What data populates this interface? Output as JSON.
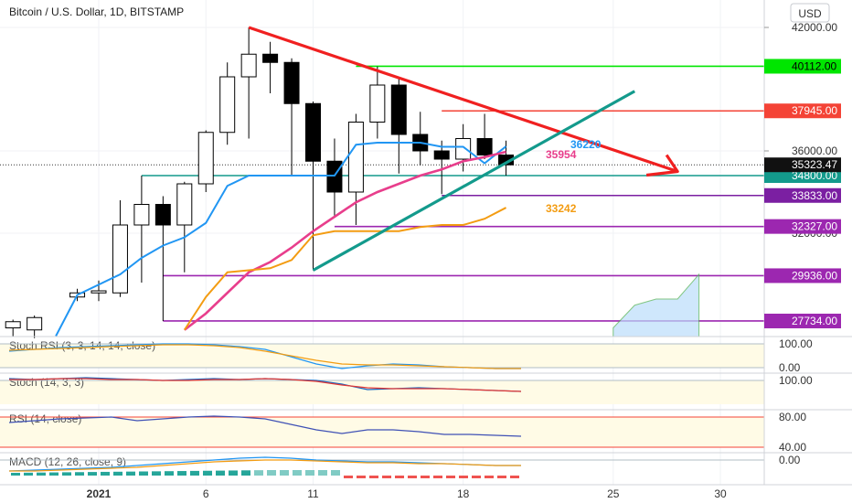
{
  "chart_data": {
    "type": "candlestick",
    "title": "Bitcoin / U.S. Dollar, 1D, BITSTAMP",
    "currency_button": "USD",
    "price_axis": {
      "ticks": [
        {
          "label": "42000.00",
          "value": 42000
        },
        {
          "label": "36000.00",
          "value": 36000
        },
        {
          "label": "32000.00",
          "value": 32000
        }
      ]
    },
    "x_axis_labels": [
      {
        "label": "2021",
        "day": 1
      },
      {
        "label": "6",
        "day": 6
      },
      {
        "label": "11",
        "day": 11
      },
      {
        "label": "18",
        "day": 18
      },
      {
        "label": "25",
        "day": 25
      },
      {
        "label": "30",
        "day": 30
      }
    ],
    "candles": [
      {
        "day": -3,
        "open": 27400,
        "high": 27800,
        "low": 27000,
        "close": 27700
      },
      {
        "day": -2,
        "open": 27300,
        "high": 28000,
        "low": 26900,
        "close": 27900
      },
      {
        "day": 0,
        "open": 28900,
        "high": 29300,
        "low": 28700,
        "close": 29100
      },
      {
        "day": 1,
        "open": 29100,
        "high": 29700,
        "low": 28700,
        "close": 29200
      },
      {
        "day": 2,
        "open": 29100,
        "high": 33600,
        "low": 28900,
        "close": 32400
      },
      {
        "day": 3,
        "open": 32400,
        "high": 34800,
        "low": 29600,
        "close": 33400
      },
      {
        "day": 4,
        "open": 33400,
        "high": 33800,
        "low": 27734,
        "close": 32400
      },
      {
        "day": 5,
        "open": 32400,
        "high": 34500,
        "low": 30100,
        "close": 34400
      },
      {
        "day": 6,
        "open": 34400,
        "high": 37000,
        "low": 34000,
        "close": 36900
      },
      {
        "day": 7,
        "open": 36900,
        "high": 40300,
        "low": 36300,
        "close": 39600
      },
      {
        "day": 8,
        "open": 39600,
        "high": 42000,
        "low": 36600,
        "close": 40700
      },
      {
        "day": 9,
        "open": 40700,
        "high": 41300,
        "low": 38800,
        "close": 40300
      },
      {
        "day": 10,
        "open": 40300,
        "high": 40500,
        "low": 34800,
        "close": 38300
      },
      {
        "day": 11,
        "open": 38300,
        "high": 38400,
        "low": 30200,
        "close": 35500
      },
      {
        "day": 12,
        "open": 35500,
        "high": 36600,
        "low": 32800,
        "close": 34000
      },
      {
        "day": 13,
        "open": 34000,
        "high": 37800,
        "low": 32400,
        "close": 37400
      },
      {
        "day": 14,
        "open": 37400,
        "high": 40100,
        "low": 36600,
        "close": 39200
      },
      {
        "day": 15,
        "open": 39200,
        "high": 39500,
        "low": 34900,
        "close": 36800
      },
      {
        "day": 16,
        "open": 36800,
        "high": 37900,
        "low": 35300,
        "close": 36000
      },
      {
        "day": 17,
        "open": 36000,
        "high": 36500,
        "low": 33900,
        "close": 35600
      },
      {
        "day": 18,
        "open": 35600,
        "high": 37300,
        "low": 35000,
        "close": 36600
      },
      {
        "day": 19,
        "open": 36600,
        "high": 37800,
        "low": 35600,
        "close": 35800
      },
      {
        "day": 20,
        "open": 35800,
        "high": 36500,
        "low": 34800,
        "close": 35323
      }
    ],
    "indicator_lines": [
      {
        "name": "blue-line",
        "color": "#2196f3",
        "label": "36220",
        "points": [
          [
            -1,
            27000
          ],
          [
            0,
            29000
          ],
          [
            2,
            30000
          ],
          [
            3,
            30800
          ],
          [
            4,
            31400
          ],
          [
            5,
            31800
          ],
          [
            6,
            32500
          ],
          [
            7,
            34300
          ],
          [
            8,
            34800
          ],
          [
            9,
            34800
          ],
          [
            10,
            34800
          ],
          [
            11,
            34800
          ],
          [
            12,
            34800
          ],
          [
            13,
            36300
          ],
          [
            14,
            36400
          ],
          [
            15,
            36400
          ],
          [
            16,
            36400
          ],
          [
            17,
            36200
          ],
          [
            18,
            36200
          ],
          [
            19,
            35400
          ],
          [
            20,
            36220
          ]
        ]
      },
      {
        "name": "pink-line",
        "color": "#e83e8c",
        "label": "35954",
        "points": [
          [
            5,
            27300
          ],
          [
            6,
            28100
          ],
          [
            7,
            29100
          ],
          [
            8,
            30100
          ],
          [
            9,
            30600
          ],
          [
            10,
            31300
          ],
          [
            11,
            32100
          ],
          [
            12,
            32800
          ],
          [
            13,
            33500
          ],
          [
            14,
            34000
          ],
          [
            15,
            34400
          ],
          [
            16,
            34800
          ],
          [
            17,
            35100
          ],
          [
            18,
            35500
          ],
          [
            19,
            35700
          ],
          [
            20,
            35954
          ]
        ]
      },
      {
        "name": "orange-line",
        "color": "#f39c12",
        "label": "33242",
        "points": [
          [
            5,
            27300
          ],
          [
            6,
            28900
          ],
          [
            7,
            30100
          ],
          [
            8,
            30200
          ],
          [
            9,
            30300
          ],
          [
            10,
            30700
          ],
          [
            11,
            31900
          ],
          [
            12,
            32100
          ],
          [
            13,
            32100
          ],
          [
            14,
            32100
          ],
          [
            15,
            32100
          ],
          [
            16,
            32300
          ],
          [
            17,
            32400
          ],
          [
            18,
            32400
          ],
          [
            19,
            32700
          ],
          [
            20,
            33242
          ]
        ]
      }
    ],
    "horizontal_levels": [
      {
        "value": 40112,
        "label": "40112.00",
        "color": "#00e600",
        "from_day": 13
      },
      {
        "value": 37945,
        "label": "37945.00",
        "color": "#f44336",
        "from_day": 17
      },
      {
        "value": 34800,
        "label": "34800.00",
        "color": "#139a8c",
        "from_day": 3
      },
      {
        "value": 33833,
        "label": "33833.00",
        "color": "#7b1fa2",
        "from_day": 17
      },
      {
        "value": 32327,
        "label": "32327.00",
        "color": "#9c27b0",
        "from_day": 12
      },
      {
        "value": 29936,
        "label": "29936.00",
        "color": "#9c27b0",
        "from_day": 4
      },
      {
        "value": 27734,
        "label": "27734.00",
        "color": "#9c27b0",
        "from_day": 4
      }
    ],
    "last_price": {
      "value": 35323.47,
      "label": "35323.47"
    },
    "trendlines": [
      {
        "name": "red-descending-trendline",
        "color": "#f02020",
        "points": [
          [
            8,
            42000
          ],
          [
            28,
            35000
          ]
        ]
      },
      {
        "name": "green-ascending-trendline",
        "color": "#139a8c",
        "points": [
          [
            11,
            30200
          ],
          [
            26,
            38900
          ]
        ]
      }
    ],
    "cloud": {
      "color": "#bbdefb",
      "points": [
        [
          25,
          27400
        ],
        [
          26,
          28500
        ],
        [
          27,
          28800
        ],
        [
          28,
          28800
        ],
        [
          29,
          30000
        ]
      ]
    },
    "panes": [
      {
        "name": "stoch-rsi",
        "label": "Stoch RSI (3, 3, 14, 14, close)",
        "levels": [
          "100.00",
          "0.00"
        ]
      },
      {
        "name": "stoch",
        "label": "Stoch (14, 3, 3)",
        "levels": [
          "100.00"
        ]
      },
      {
        "name": "rsi",
        "label": "RSI (14, close)",
        "levels": [
          "80.00",
          "40.00"
        ]
      },
      {
        "name": "macd",
        "label": "MACD (12, 26, close, 9)",
        "levels": [
          "0.00"
        ]
      }
    ]
  }
}
